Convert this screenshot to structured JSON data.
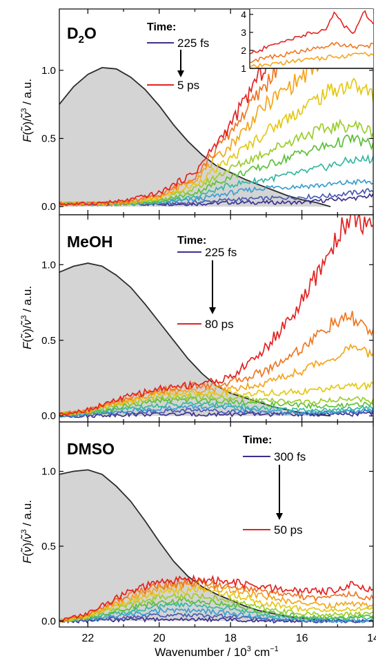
{
  "figure": {
    "xlabel": "Wavenumber / 10³ cm⁻¹",
    "xlabel_parts": {
      "main": "Wavenumber / 10",
      "exp1": "3",
      "mid": " cm",
      "exp2": "−1"
    },
    "ylabel": "F(ν̃)/ν̃³ / a.u.",
    "ylabel_parts": {
      "f": "F",
      "open": "(",
      "nu": "ν̃",
      "close": ")/",
      "nu2": "ν̃",
      "exp": "3",
      "unit": " / a.u."
    },
    "colors": {
      "reference_fill": "#d4d4d4",
      "reference_line": "#2b2b2b",
      "series": [
        "#3b2f8f",
        "#4a5bb0",
        "#3a9ed0",
        "#36b7a0",
        "#5cbf3a",
        "#9ccc2c",
        "#e3c815",
        "#f4a51a",
        "#ee7722",
        "#e32222"
      ]
    }
  },
  "chart_data": [
    {
      "type": "line",
      "panel_label_main": "D",
      "panel_label_sub": "2",
      "panel_label_end": "O",
      "legend": {
        "title": "Time:",
        "first": "225 fs",
        "last": "5 ps"
      },
      "x_reversed": true,
      "xlim": [
        22.8,
        14.0
      ],
      "ylim": [
        -0.06,
        1.45
      ],
      "x_ticks": [
        "22",
        "20",
        "18",
        "16",
        "14"
      ],
      "y_ticks": [
        "0.0",
        "0.5",
        "1.0"
      ],
      "reference": {
        "name": "steady-state absorption",
        "x": [
          22.8,
          22.4,
          22.0,
          21.6,
          21.2,
          20.8,
          20.4,
          20.0,
          19.6,
          19.2,
          18.8,
          18.4,
          18.0,
          17.6,
          17.2,
          16.8,
          16.4,
          16.0,
          15.6,
          15.2
        ],
        "y": [
          0.75,
          0.88,
          0.97,
          1.02,
          1.01,
          0.95,
          0.86,
          0.74,
          0.6,
          0.48,
          0.38,
          0.3,
          0.25,
          0.2,
          0.16,
          0.12,
          0.08,
          0.05,
          0.03,
          0.0
        ]
      },
      "series_x": [
        22.8,
        22.0,
        21.0,
        20.0,
        19.0,
        18.0,
        17.0,
        16.0,
        15.2,
        14.6,
        14.0
      ],
      "series_values": [
        [
          0.02,
          0.02,
          0.02,
          0.02,
          0.02,
          0.03,
          0.03,
          0.03,
          0.05,
          0.06,
          0.08
        ],
        [
          0.02,
          0.02,
          0.02,
          0.02,
          0.03,
          0.05,
          0.06,
          0.07,
          0.08,
          0.1,
          0.12
        ],
        [
          0.02,
          0.02,
          0.02,
          0.03,
          0.05,
          0.1,
          0.14,
          0.15,
          0.16,
          0.18,
          0.18
        ],
        [
          0.02,
          0.02,
          0.02,
          0.03,
          0.07,
          0.16,
          0.2,
          0.25,
          0.3,
          0.34,
          0.35
        ],
        [
          0.02,
          0.02,
          0.02,
          0.04,
          0.1,
          0.22,
          0.3,
          0.4,
          0.45,
          0.5,
          0.45
        ],
        [
          0.02,
          0.02,
          0.02,
          0.05,
          0.13,
          0.28,
          0.4,
          0.52,
          0.58,
          0.6,
          0.55
        ],
        [
          0.02,
          0.02,
          0.03,
          0.06,
          0.16,
          0.35,
          0.55,
          0.72,
          0.85,
          0.9,
          0.82
        ],
        [
          0.02,
          0.02,
          0.03,
          0.07,
          0.2,
          0.45,
          0.75,
          0.95,
          1.1,
          1.2,
          1.0
        ],
        [
          0.02,
          0.02,
          0.03,
          0.08,
          0.22,
          0.55,
          0.9,
          1.3,
          1.5,
          1.5,
          1.5
        ],
        [
          0.02,
          0.02,
          0.04,
          0.1,
          0.25,
          0.6,
          1.05,
          1.5,
          1.5,
          1.5,
          1.5
        ]
      ],
      "inset": {
        "ylim": [
          1,
          4.3
        ],
        "y_ticks": [
          "1",
          "2",
          "3",
          "4"
        ],
        "x": [
          16.6,
          16.2,
          15.8,
          15.4,
          15.0,
          14.8,
          14.6,
          14.4,
          14.2,
          14.0
        ],
        "series": [
          {
            "color_index": 7,
            "values": [
              1.05,
              1.2,
              1.35,
              1.5,
              1.6,
              1.65,
              1.7,
              1.75,
              1.8,
              1.8
            ]
          },
          {
            "color_index": 8,
            "values": [
              1.4,
              1.6,
              1.8,
              2.0,
              2.2,
              2.4,
              2.3,
              2.2,
              2.2,
              2.3
            ]
          },
          {
            "color_index": 9,
            "values": [
              1.8,
              2.2,
              2.6,
              2.9,
              3.1,
              4.2,
              3.3,
              3.0,
              4.2,
              3.4
            ]
          }
        ]
      }
    },
    {
      "type": "line",
      "panel_label": "MeOH",
      "legend": {
        "title": "Time:",
        "first": "225 fs",
        "last": "80 ps"
      },
      "x_reversed": true,
      "xlim": [
        22.8,
        14.0
      ],
      "ylim": [
        -0.04,
        1.33
      ],
      "x_ticks": [
        "22",
        "20",
        "18",
        "16",
        "14"
      ],
      "y_ticks": [
        "0.0",
        "0.5",
        "1.0"
      ],
      "reference": {
        "name": "steady-state absorption",
        "x": [
          22.8,
          22.4,
          22.0,
          21.6,
          21.2,
          20.8,
          20.4,
          20.0,
          19.6,
          19.2,
          18.8,
          18.4,
          18.0,
          17.6,
          17.2,
          16.8,
          16.4,
          16.0,
          15.6,
          15.2
        ],
        "y": [
          0.95,
          0.99,
          1.01,
          0.99,
          0.93,
          0.85,
          0.74,
          0.62,
          0.5,
          0.38,
          0.28,
          0.2,
          0.15,
          0.12,
          0.09,
          0.06,
          0.04,
          0.02,
          0.01,
          0.0
        ]
      },
      "series_x": [
        22.8,
        22.0,
        21.0,
        20.0,
        19.0,
        18.0,
        17.0,
        16.0,
        15.2,
        14.6,
        14.0
      ],
      "series_values": [
        [
          0.0,
          0.0,
          0.01,
          0.01,
          0.01,
          0.01,
          0.01,
          0.01,
          0.01,
          0.01,
          0.02
        ],
        [
          0.0,
          0.01,
          0.02,
          0.03,
          0.04,
          0.03,
          0.02,
          0.02,
          0.02,
          0.02,
          0.03
        ],
        [
          0.0,
          0.01,
          0.03,
          0.05,
          0.06,
          0.05,
          0.03,
          0.02,
          0.02,
          0.03,
          0.04
        ],
        [
          0.01,
          0.02,
          0.05,
          0.07,
          0.08,
          0.07,
          0.05,
          0.04,
          0.04,
          0.05,
          0.06
        ],
        [
          0.01,
          0.02,
          0.06,
          0.1,
          0.11,
          0.1,
          0.08,
          0.07,
          0.06,
          0.07,
          0.08
        ],
        [
          0.01,
          0.03,
          0.08,
          0.12,
          0.13,
          0.12,
          0.1,
          0.09,
          0.1,
          0.12,
          0.1
        ],
        [
          0.01,
          0.03,
          0.09,
          0.14,
          0.15,
          0.15,
          0.15,
          0.16,
          0.18,
          0.2,
          0.2
        ],
        [
          0.01,
          0.03,
          0.1,
          0.15,
          0.17,
          0.18,
          0.22,
          0.3,
          0.38,
          0.45,
          0.4
        ],
        [
          0.01,
          0.04,
          0.11,
          0.17,
          0.2,
          0.22,
          0.3,
          0.45,
          0.6,
          0.65,
          0.55
        ],
        [
          0.01,
          0.04,
          0.12,
          0.18,
          0.21,
          0.25,
          0.45,
          0.75,
          1.1,
          1.35,
          1.2
        ]
      ]
    },
    {
      "type": "line",
      "panel_label": "DMSO",
      "legend": {
        "title": "Time:",
        "first": "300 fs",
        "last": "50 ps"
      },
      "x_reversed": true,
      "xlim": [
        22.8,
        14.0
      ],
      "ylim": [
        -0.04,
        1.33
      ],
      "x_ticks": [
        "22",
        "20",
        "18",
        "16",
        "14"
      ],
      "y_ticks": [
        "0.0",
        "0.5",
        "1.0"
      ],
      "reference": {
        "name": "steady-state absorption",
        "x": [
          22.8,
          22.4,
          22.0,
          21.6,
          21.2,
          20.8,
          20.4,
          20.0,
          19.6,
          19.2,
          18.8,
          18.4,
          18.0,
          17.6,
          17.2,
          16.8,
          16.4,
          16.0,
          15.6,
          15.2
        ],
        "y": [
          0.98,
          1.0,
          1.01,
          0.98,
          0.9,
          0.8,
          0.67,
          0.53,
          0.4,
          0.3,
          0.23,
          0.18,
          0.14,
          0.1,
          0.07,
          0.05,
          0.03,
          0.02,
          0.01,
          0.0
        ]
      },
      "series_x": [
        22.8,
        22.0,
        21.0,
        20.0,
        19.0,
        18.0,
        17.0,
        16.0,
        15.2,
        14.6,
        14.0
      ],
      "series_values": [
        [
          0.0,
          0.0,
          0.01,
          0.01,
          0.01,
          0.01,
          0.0,
          0.0,
          0.0,
          0.0,
          0.0
        ],
        [
          0.0,
          0.01,
          0.02,
          0.04,
          0.04,
          0.03,
          0.01,
          0.0,
          0.0,
          0.0,
          0.0
        ],
        [
          0.0,
          0.01,
          0.04,
          0.07,
          0.07,
          0.05,
          0.02,
          0.01,
          0.0,
          0.0,
          0.0
        ],
        [
          0.0,
          0.02,
          0.06,
          0.1,
          0.11,
          0.08,
          0.04,
          0.02,
          0.01,
          0.02,
          0.02
        ],
        [
          0.0,
          0.02,
          0.08,
          0.13,
          0.14,
          0.11,
          0.06,
          0.03,
          0.02,
          0.03,
          0.03
        ],
        [
          0.0,
          0.03,
          0.1,
          0.16,
          0.17,
          0.14,
          0.08,
          0.05,
          0.04,
          0.05,
          0.05
        ],
        [
          0.0,
          0.03,
          0.12,
          0.19,
          0.21,
          0.18,
          0.12,
          0.08,
          0.07,
          0.08,
          0.08
        ],
        [
          0.0,
          0.04,
          0.14,
          0.22,
          0.24,
          0.21,
          0.16,
          0.12,
          0.1,
          0.12,
          0.1
        ],
        [
          0.0,
          0.04,
          0.16,
          0.24,
          0.26,
          0.23,
          0.19,
          0.16,
          0.15,
          0.18,
          0.15
        ],
        [
          0.0,
          0.05,
          0.18,
          0.26,
          0.28,
          0.26,
          0.22,
          0.2,
          0.2,
          0.25,
          0.2
        ]
      ]
    }
  ]
}
